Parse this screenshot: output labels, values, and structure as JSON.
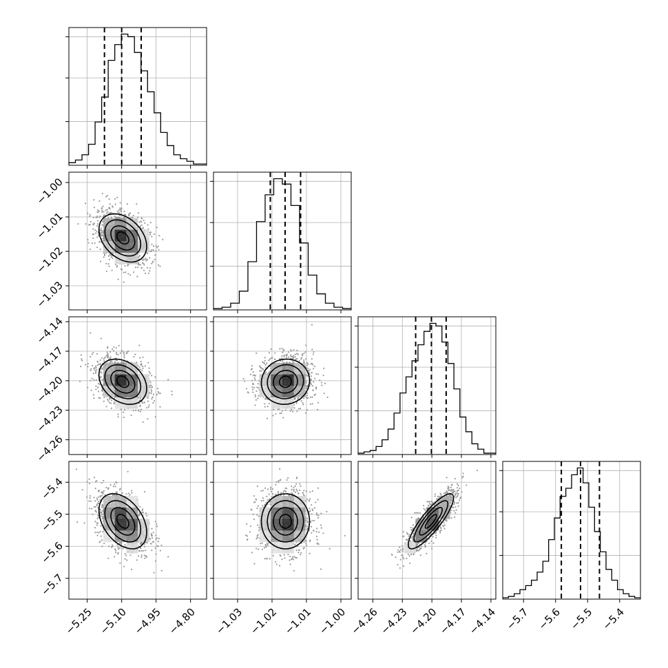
{
  "chart_data": {
    "type": "corner",
    "parameters": [
      {
        "range": [
          -5.33,
          -4.73
        ],
        "ticks": [
          -5.25,
          -5.1,
          -4.95,
          -4.8
        ],
        "tick_labels": [
          "−5.25",
          "−5.10",
          "−4.95",
          "−4.80"
        ],
        "quantiles": [
          -5.175,
          -5.1,
          -5.015
        ],
        "mean": -5.095,
        "sd": 0.052,
        "hist": [
          2,
          4,
          8,
          16,
          33,
          52,
          80,
          92,
          100,
          98,
          86,
          72,
          56,
          40,
          25,
          15,
          8,
          5,
          3,
          1,
          1
        ]
      },
      {
        "range": [
          -1.037,
          -0.997
        ],
        "ticks": [
          -1.03,
          -1.02,
          -1.01,
          -1.0
        ],
        "tick_labels": [
          "−1.03",
          "−1.02",
          "−1.01",
          "−1.00"
        ],
        "quantiles": [
          -1.0205,
          -1.0162,
          -1.0117
        ],
        "mean": -1.0161,
        "sd": 0.0035,
        "hist": [
          1,
          2,
          5,
          14,
          36,
          66,
          86,
          98,
          94,
          78,
          50,
          26,
          12,
          5,
          2,
          1
        ]
      },
      {
        "range": [
          -4.275,
          -4.135
        ],
        "ticks": [
          -4.26,
          -4.23,
          -4.2,
          -4.17,
          -4.14
        ],
        "tick_labels": [
          "−4.26",
          "−4.23",
          "−4.20",
          "−4.17",
          "−4.14"
        ],
        "quantiles": [
          -4.2165,
          -4.2005,
          -4.1855
        ],
        "mean": -4.201,
        "sd": 0.0115,
        "hist": [
          1,
          2,
          3,
          6,
          11,
          19,
          31,
          46,
          58,
          70,
          82,
          92,
          98,
          96,
          84,
          68,
          49,
          28,
          17,
          8,
          4,
          1,
          1
        ]
      },
      {
        "range": [
          -5.765,
          -5.335
        ],
        "ticks": [
          -5.7,
          -5.6,
          -5.5,
          -5.4
        ],
        "tick_labels": [
          "−5.7",
          "−5.6",
          "−5.5",
          "−5.4"
        ],
        "quantiles": [
          -5.582,
          -5.522,
          -5.463
        ],
        "mean": -5.522,
        "sd": 0.043,
        "hist": [
          1,
          2,
          4,
          7,
          10,
          14,
          20,
          28,
          44,
          60,
          76,
          82,
          92,
          97,
          86,
          68,
          50,
          35,
          22,
          14,
          7,
          4,
          2,
          1
        ]
      }
    ],
    "correlations": [
      [
        1.0,
        -0.35,
        -0.3,
        -0.4
      ],
      [
        -0.35,
        1.0,
        0.05,
        0.0
      ],
      [
        -0.3,
        0.05,
        1.0,
        0.85
      ],
      [
        -0.4,
        0.0,
        0.85,
        1.0
      ]
    ],
    "grid": true,
    "title": "",
    "xlabel": "",
    "ylabel": ""
  }
}
